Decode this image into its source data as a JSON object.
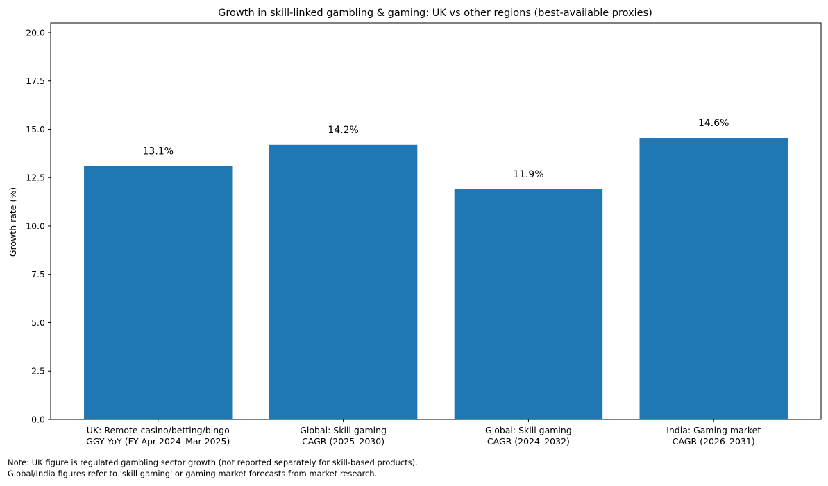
{
  "chart_data": {
    "type": "bar",
    "title": "Growth in skill-linked gambling & gaming: UK vs other regions (best-available proxies)",
    "xlabel": "",
    "ylabel": "Growth rate (%)",
    "ylim": [
      0,
      20.5
    ],
    "yticks": [
      0.0,
      2.5,
      5.0,
      7.5,
      10.0,
      12.5,
      15.0,
      17.5,
      20.0
    ],
    "ytick_labels": [
      "0.0",
      "2.5",
      "5.0",
      "7.5",
      "10.0",
      "12.5",
      "15.0",
      "17.5",
      "20.0"
    ],
    "grid": false,
    "categories": [
      [
        "UK: Remote casino/betting/bingo",
        "GGY YoY (FY Apr 2024–Mar 2025)"
      ],
      [
        "Global: Skill gaming",
        "CAGR (2025–2030)"
      ],
      [
        "Global: Skill gaming",
        "CAGR (2024–2032)"
      ],
      [
        "India: Gaming market",
        "CAGR (2026–2031)"
      ]
    ],
    "values": [
      13.1,
      14.2,
      11.9,
      14.55
    ],
    "data_labels": [
      "13.1%",
      "14.2%",
      "11.9%",
      "14.6%"
    ],
    "bar_color": "#1f77b4"
  },
  "notes": {
    "line1": "Note: UK figure is regulated gambling sector growth (not reported separately for skill-based products).",
    "line2": "Global/India figures refer to 'skill gaming' or gaming market forecasts from market research."
  }
}
